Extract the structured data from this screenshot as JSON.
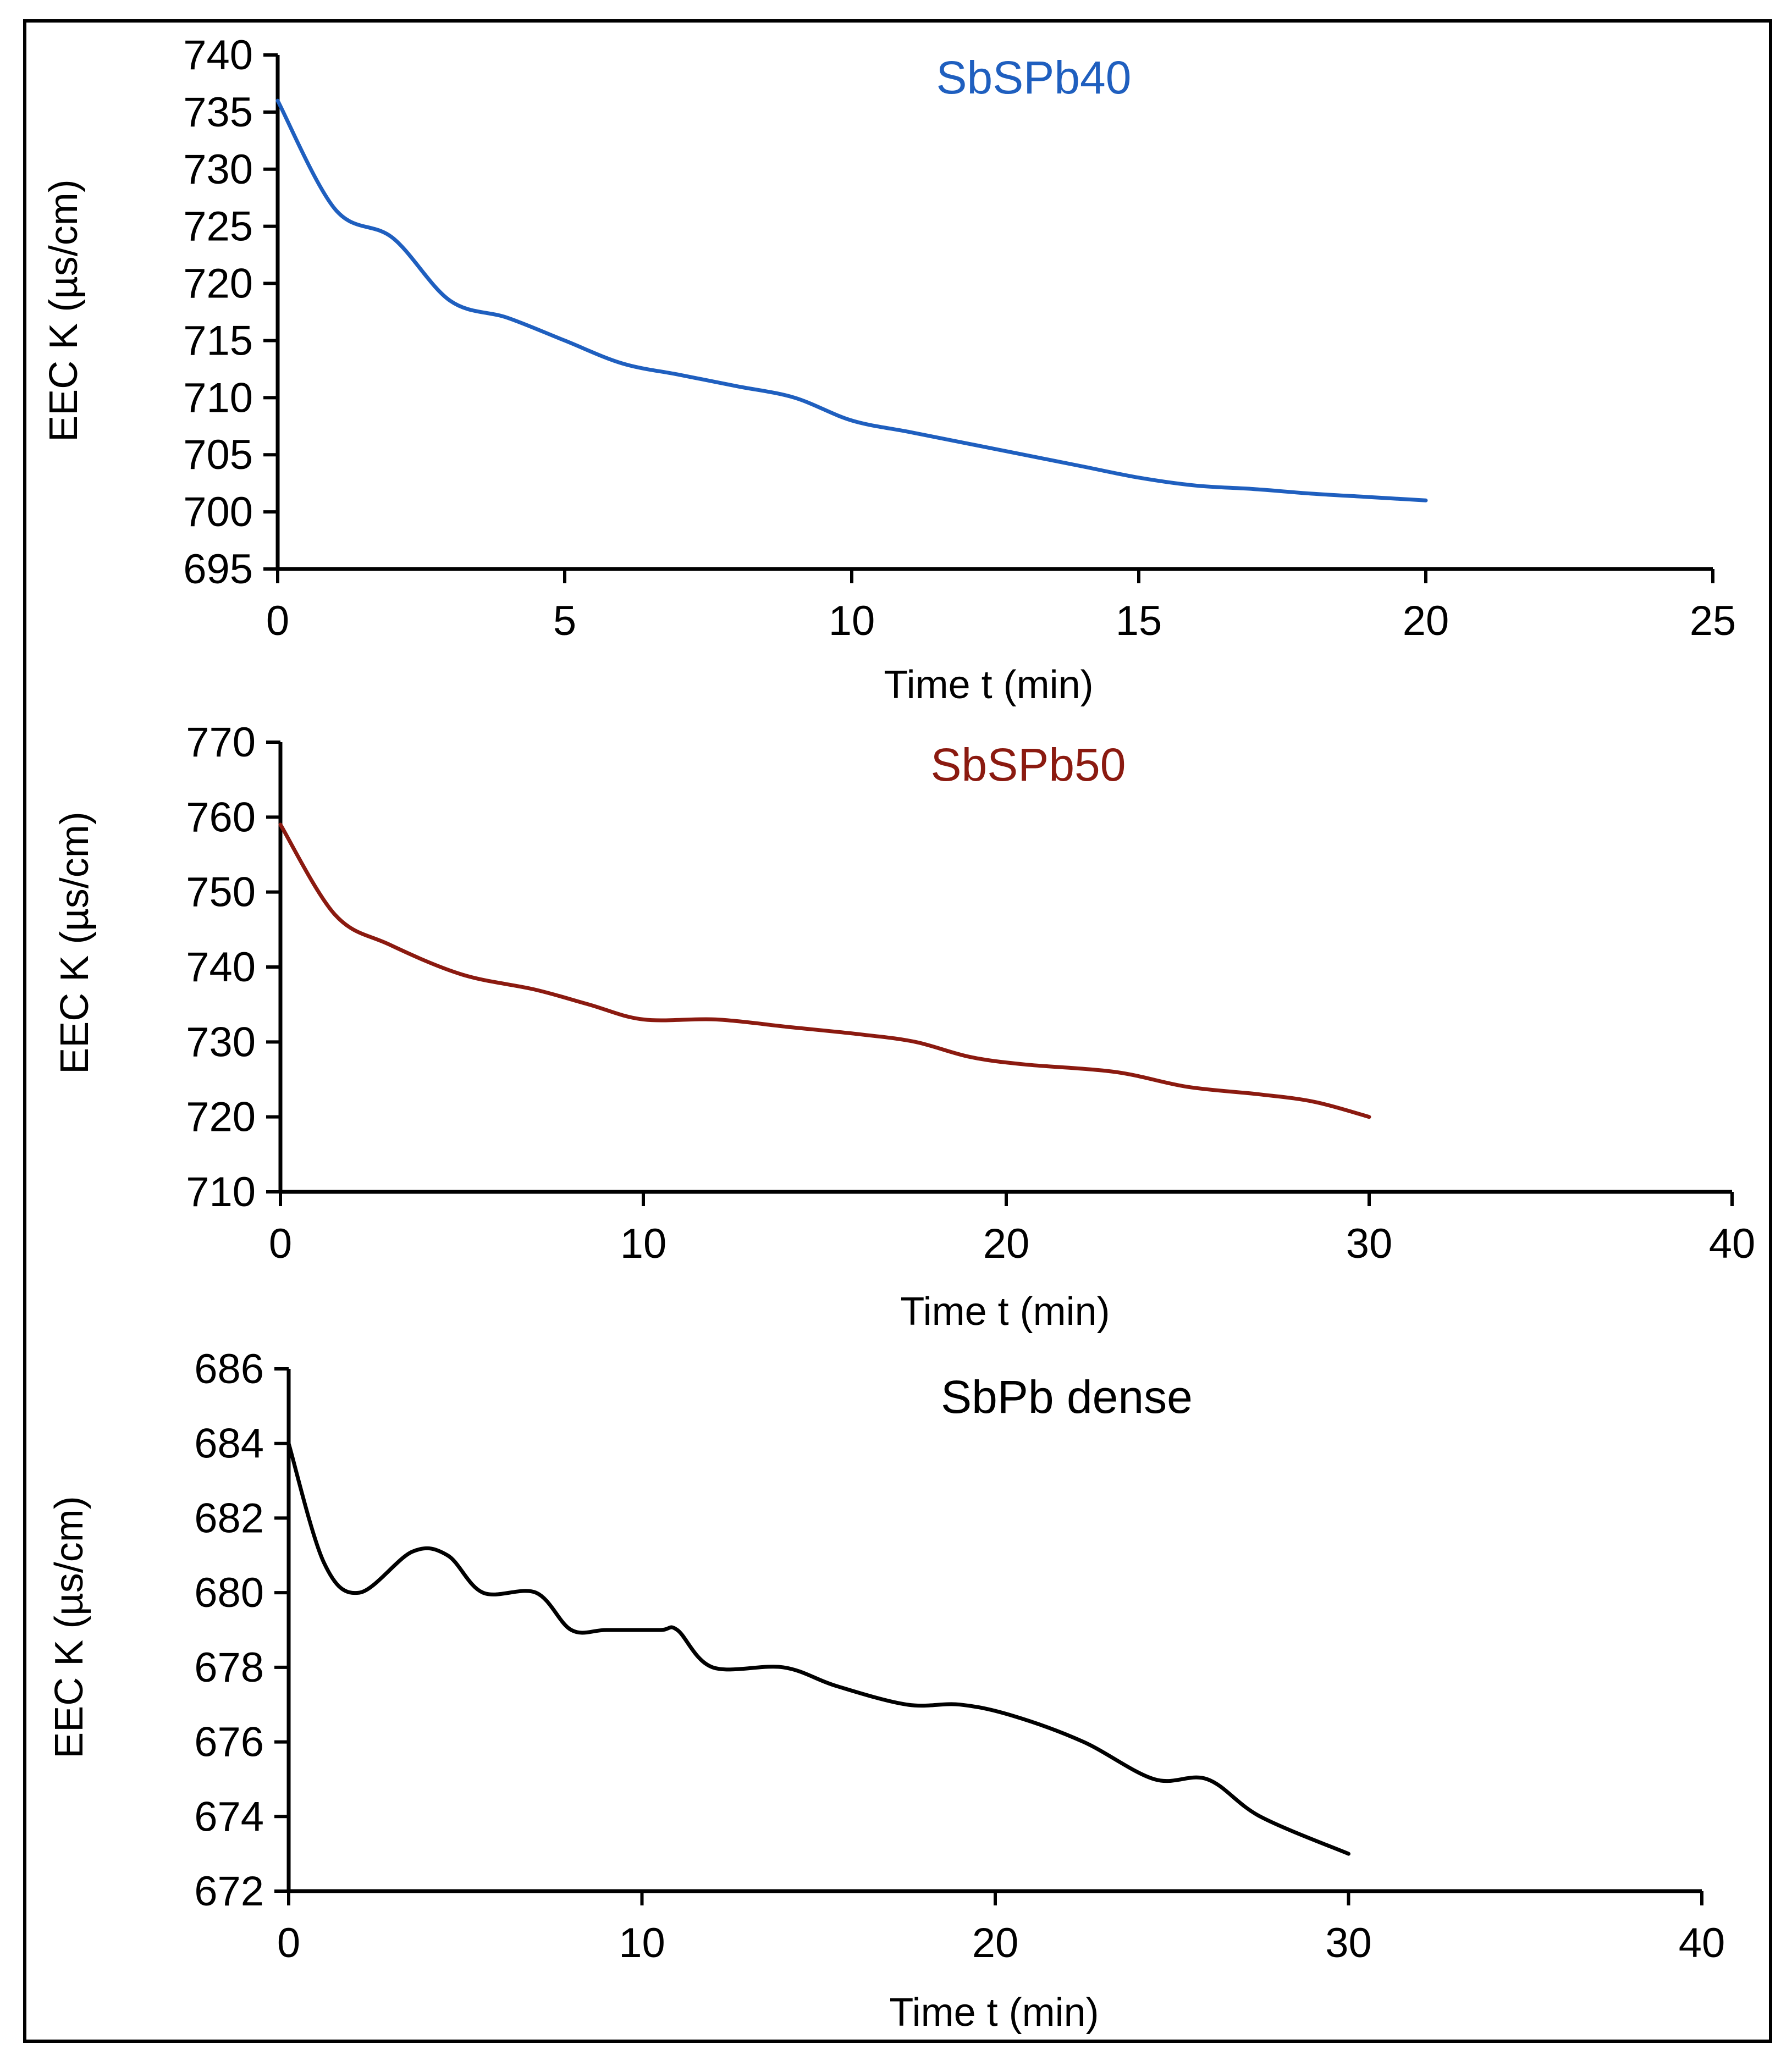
{
  "chart_data": [
    {
      "type": "line",
      "title": "SbSPb40",
      "title_color": "#1F5FBF",
      "line_color": "#1F5FBF",
      "xlabel": "Time t (min)",
      "ylabel": "EEC K (µs/cm)",
      "xlim": [
        0,
        25
      ],
      "ylim": [
        695,
        740
      ],
      "xticks": [
        0,
        5,
        10,
        15,
        20,
        25
      ],
      "yticks": [
        695,
        700,
        705,
        710,
        715,
        720,
        725,
        730,
        735,
        740
      ],
      "series": [
        {
          "name": "SbSPb40",
          "x": [
            0,
            1,
            2,
            3,
            4,
            5,
            6,
            7,
            8,
            9,
            10,
            11,
            12,
            13,
            14,
            15,
            16,
            17,
            18,
            19,
            20
          ],
          "y": [
            736,
            726.5,
            724,
            718.5,
            717,
            715,
            713,
            712,
            711,
            710,
            708,
            707,
            706,
            705,
            704,
            703,
            702.3,
            702,
            701.6,
            701.3,
            701
          ]
        }
      ]
    },
    {
      "type": "line",
      "title": "SbSPb50",
      "title_color": "#8B1A10",
      "line_color": "#8B1A10",
      "xlabel": "Time t (min)",
      "ylabel": "EEC K (µs/cm)",
      "xlim": [
        0,
        40
      ],
      "ylim": [
        710,
        770
      ],
      "xticks": [
        0,
        10,
        20,
        30,
        40
      ],
      "yticks": [
        710,
        720,
        730,
        740,
        750,
        760,
        770
      ],
      "series": [
        {
          "name": "SbSPb50",
          "x": [
            0,
            1.5,
            3,
            5,
            7,
            8.5,
            10,
            12,
            14,
            16,
            17.5,
            19,
            20.5,
            23,
            25,
            27,
            28.5,
            30
          ],
          "y": [
            759,
            747,
            743,
            739,
            737,
            735,
            733,
            733,
            732,
            731,
            730,
            728,
            727,
            726,
            724,
            723,
            722,
            720
          ]
        }
      ]
    },
    {
      "type": "line",
      "title": "SbPb dense",
      "title_color": "#000000",
      "line_color": "#000000",
      "xlabel": "Time t (min)",
      "ylabel": "EEC K (µs/cm)",
      "xlim": [
        0,
        40
      ],
      "ylim": [
        672,
        686
      ],
      "xticks": [
        0,
        10,
        20,
        30,
        40
      ],
      "yticks": [
        672,
        674,
        676,
        678,
        680,
        682,
        684,
        686
      ],
      "series": [
        {
          "name": "SbPb dense",
          "x": [
            0,
            1,
            2,
            3.5,
            4.5,
            5.5,
            7,
            8,
            9,
            10.5,
            11,
            12,
            14,
            15.5,
            17.5,
            19,
            20.5,
            22.5,
            24.5,
            26,
            27.5,
            30
          ],
          "y": [
            684,
            680.8,
            680,
            681.1,
            681,
            680,
            680,
            679,
            679,
            679,
            679,
            678,
            678,
            677.5,
            677,
            677,
            676.7,
            676,
            675,
            675,
            674,
            673
          ]
        }
      ]
    }
  ]
}
